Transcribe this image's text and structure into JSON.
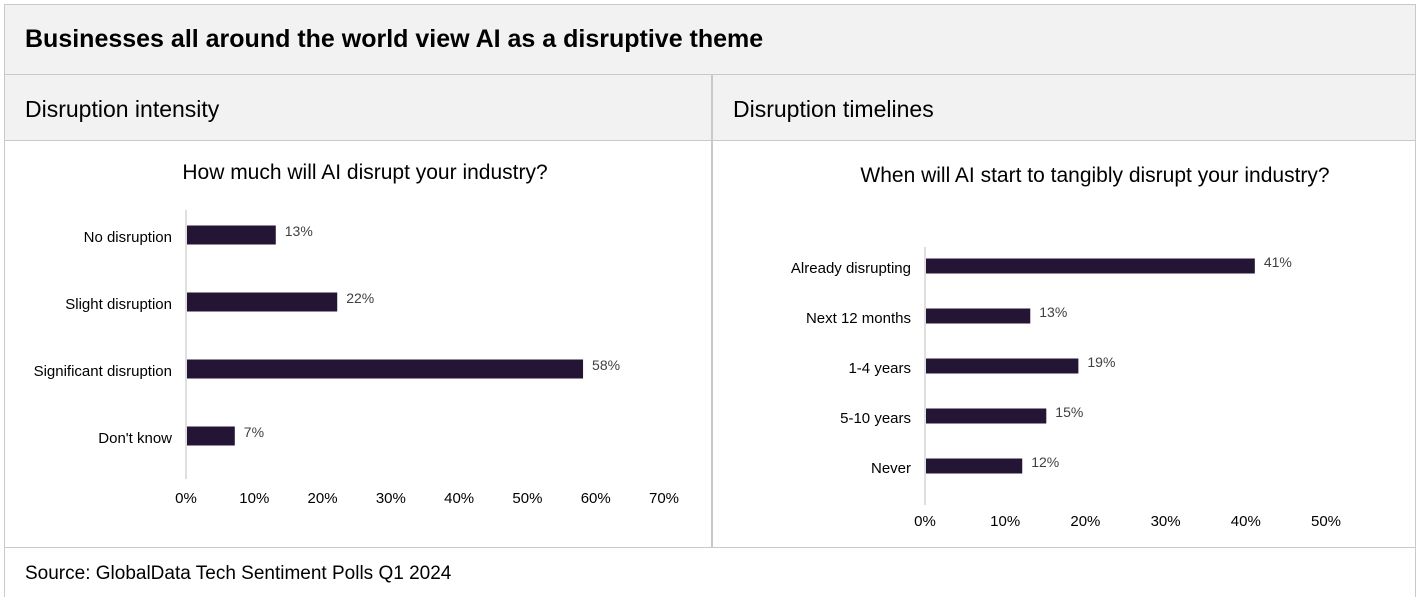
{
  "header": {
    "title": "Businesses all around the world view AI as a disruptive theme"
  },
  "panels": {
    "left": {
      "heading": "Disruption intensity"
    },
    "right": {
      "heading": "Disruption timelines"
    }
  },
  "footer": {
    "source": "Source: GlobalData Tech Sentiment Polls Q1 2024"
  },
  "colors": {
    "bar": "#241535",
    "axis": "#bfbfbf",
    "panel_bg": "#f2f2f2",
    "border": "#c9c9c9"
  },
  "chart_data": [
    {
      "type": "bar",
      "orientation": "horizontal",
      "title": "How much will AI disrupt your industry?",
      "categories": [
        "No disruption",
        "Slight disruption",
        "Significant disruption",
        "Don't know"
      ],
      "values": [
        13,
        22,
        58,
        7
      ],
      "value_labels": [
        "13%",
        "22%",
        "58%",
        "7%"
      ],
      "xlim": [
        0,
        70
      ],
      "ticks": [
        "0%",
        "10%",
        "20%",
        "30%",
        "40%",
        "50%",
        "60%",
        "70%"
      ],
      "grid": false
    },
    {
      "type": "bar",
      "orientation": "horizontal",
      "title": "When will AI start to tangibly disrupt your industry?",
      "categories": [
        "Already disrupting",
        "Next 12 months",
        "1-4 years",
        "5-10 years",
        "Never"
      ],
      "values": [
        41,
        13,
        19,
        15,
        12
      ],
      "value_labels": [
        "41%",
        "13%",
        "19%",
        "15%",
        "12%"
      ],
      "xlim": [
        0,
        50
      ],
      "ticks": [
        "0%",
        "10%",
        "20%",
        "30%",
        "40%",
        "50%"
      ],
      "grid": false
    }
  ]
}
